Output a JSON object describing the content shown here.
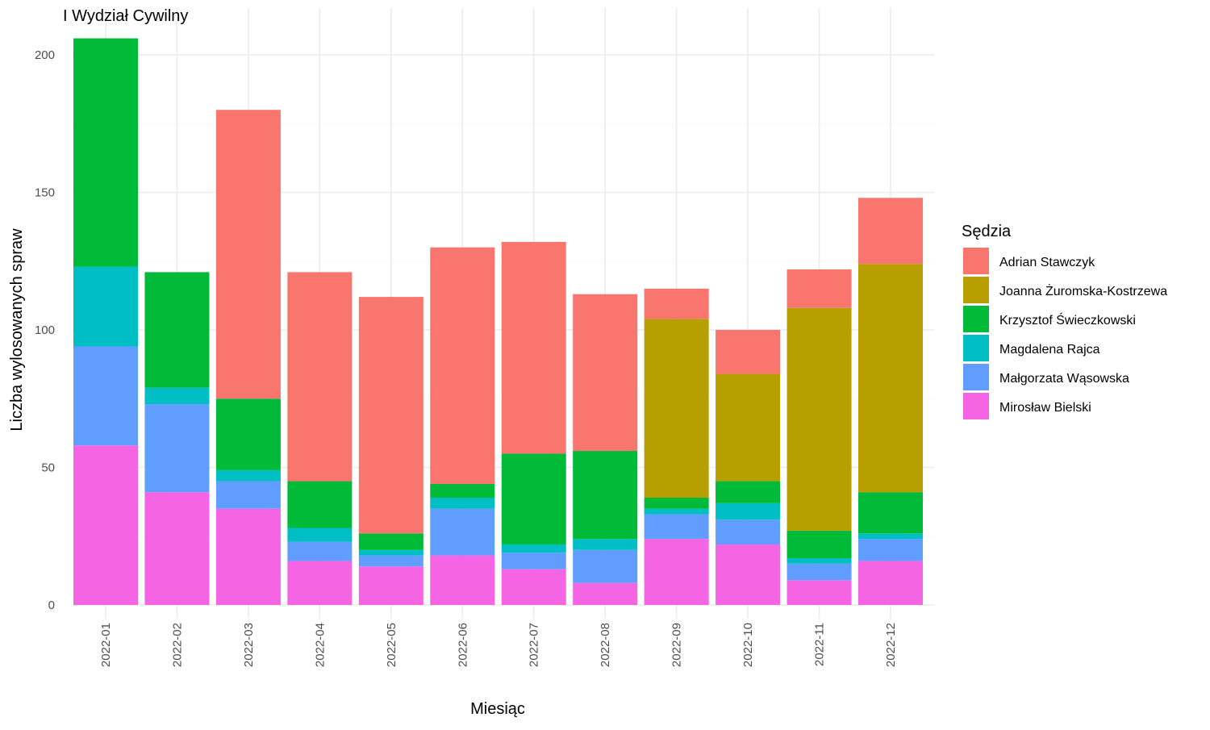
{
  "chart_data": {
    "type": "bar",
    "stacked": true,
    "title": "I Wydział Cywilny",
    "xlabel": "Miesiąc",
    "ylabel": "Liczba wylosowanych spraw",
    "ylim": [
      0,
      210
    ],
    "yticks": [
      0,
      50,
      100,
      150,
      200
    ],
    "grid": true,
    "legend_position": "right",
    "legend_title": "Sędzia",
    "categories": [
      "2022-01",
      "2022-02",
      "2022-03",
      "2022-04",
      "2022-05",
      "2022-06",
      "2022-07",
      "2022-08",
      "2022-09",
      "2022-10",
      "2022-11",
      "2022-12"
    ],
    "legend_order": [
      "Adrian Stawczyk",
      "Joanna Żuromska-Kostrzewa",
      "Krzysztof Świeczkowski",
      "Magdalena Rajca",
      "Małgorzata Wąsowska",
      "Mirosław Bielski"
    ],
    "series": [
      {
        "name": "Mirosław Bielski",
        "color": "#F564E3",
        "values": [
          58,
          41,
          35,
          16,
          14,
          18,
          13,
          8,
          24,
          22,
          9,
          16
        ]
      },
      {
        "name": "Małgorzata Wąsowska",
        "color": "#619CFF",
        "values": [
          36,
          32,
          10,
          7,
          4,
          17,
          6,
          12,
          9,
          9,
          6,
          8
        ]
      },
      {
        "name": "Magdalena Rajca",
        "color": "#00BFC4",
        "values": [
          29,
          6,
          4,
          5,
          2,
          4,
          3,
          4,
          2,
          6,
          2,
          2
        ]
      },
      {
        "name": "Krzysztof Świeczkowski",
        "color": "#00BA38",
        "values": [
          83,
          42,
          26,
          17,
          6,
          5,
          33,
          32,
          4,
          8,
          10,
          15
        ]
      },
      {
        "name": "Joanna Żuromska-Kostrzewa",
        "color": "#B79F00",
        "values": [
          0,
          0,
          0,
          0,
          0,
          0,
          0,
          0,
          65,
          39,
          81,
          83
        ]
      },
      {
        "name": "Adrian Stawczyk",
        "color": "#F8766D",
        "values": [
          0,
          0,
          105,
          76,
          86,
          86,
          77,
          57,
          11,
          16,
          14,
          24
        ]
      }
    ]
  }
}
